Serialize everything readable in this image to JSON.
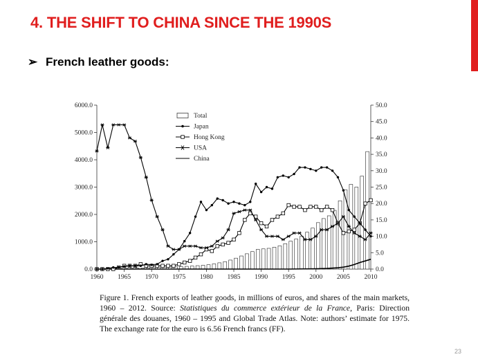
{
  "slide": {
    "title": "4. THE SHIFT TO CHINA SINCE THE 1990S",
    "bullet_symbol": "➢",
    "bullet_text": "French leather goods:",
    "page_number": "23",
    "accent_color": "#e01e1e"
  },
  "caption": {
    "prefix": "Figure 1.   French exports of leather goods, in millions of euros, and shares of the main markets, 1960 – 2012. Source: ",
    "source_italic": "Statistiques du commerce extérieur de la France",
    "suffix": ", Paris: Direction générale des douanes, 1960 – 1995 and Global Trade Atlas. Note: authors’ estimate for 1975. The exchange rate for the euro is 6.56 French francs (FF)."
  },
  "chart_data": {
    "type": "bar",
    "xlim": [
      1960,
      2010
    ],
    "x_ticks": [
      "1960",
      "1965",
      "1970",
      "1975",
      "1980",
      "1985",
      "1990",
      "1995",
      "2000",
      "2005",
      "2010"
    ],
    "y_left": {
      "range": [
        0,
        6000
      ],
      "ticks": [
        "0.0",
        "1000.0",
        "2000.0",
        "3000.0",
        "4000.0",
        "5000.0",
        "6000.0"
      ]
    },
    "y_right": {
      "range": [
        0,
        50
      ],
      "ticks": [
        "0.0",
        "5.0",
        "10.0",
        "15.0",
        "20.0",
        "25.0",
        "30.0",
        "35.0",
        "40.0",
        "45.0",
        "50.0"
      ]
    },
    "legend": [
      "Total",
      "Japan",
      "Hong Kong",
      "USA",
      "China"
    ],
    "legend_position": "top-center",
    "total": {
      "x": [
        1960,
        1961,
        1962,
        1963,
        1964,
        1965,
        1966,
        1967,
        1968,
        1969,
        1970,
        1971,
        1972,
        1973,
        1974,
        1975,
        1976,
        1977,
        1978,
        1979,
        1980,
        1981,
        1982,
        1983,
        1984,
        1985,
        1986,
        1987,
        1988,
        1989,
        1990,
        1991,
        1992,
        1993,
        1994,
        1995,
        1996,
        1997,
        1998,
        1999,
        2000,
        2001,
        2002,
        2003,
        2004,
        2005,
        2006,
        2007,
        2008,
        2009
      ],
      "values": [
        5,
        7,
        10,
        15,
        20,
        25,
        30,
        35,
        40,
        48,
        55,
        60,
        65,
        72,
        80,
        90,
        100,
        110,
        125,
        140,
        160,
        190,
        230,
        270,
        330,
        400,
        480,
        560,
        640,
        720,
        740,
        760,
        800,
        850,
        930,
        1020,
        1100,
        1200,
        1350,
        1500,
        1700,
        1850,
        1950,
        2150,
        2500,
        2900,
        3100,
        3000,
        3400,
        4300
      ]
    },
    "japan": {
      "x": [
        1960,
        1961,
        1962,
        1963,
        1964,
        1965,
        1966,
        1967,
        1968,
        1969,
        1970,
        1971,
        1972,
        1973,
        1974,
        1975,
        1976,
        1977,
        1978,
        1979,
        1980,
        1981,
        1982,
        1983,
        1984,
        1985,
        1986,
        1987,
        1988,
        1989,
        1990,
        1991,
        1992,
        1993,
        1994,
        1995,
        1996,
        1997,
        1998,
        1999,
        2000,
        2001,
        2002,
        2003,
        2004,
        2005,
        2006,
        2007,
        2008,
        2009,
        2010
      ],
      "values": [
        0,
        0,
        0.2,
        0.5,
        0.5,
        0.8,
        1,
        1,
        1,
        1.5,
        1.3,
        1.5,
        2.5,
        3,
        4.5,
        6,
        8.5,
        11,
        16,
        20.5,
        18,
        19.5,
        21.5,
        21,
        20,
        20.5,
        20,
        19.5,
        20.5,
        26,
        23.5,
        25,
        24.5,
        28,
        28.5,
        28,
        29,
        31,
        31,
        30.5,
        30,
        31,
        31,
        30,
        28,
        24,
        18,
        16,
        14,
        12,
        10
      ]
    },
    "hong_kong": {
      "x": [
        1960,
        1961,
        1962,
        1963,
        1964,
        1965,
        1966,
        1967,
        1968,
        1969,
        1970,
        1971,
        1972,
        1973,
        1974,
        1975,
        1976,
        1977,
        1978,
        1979,
        1980,
        1981,
        1982,
        1983,
        1984,
        1985,
        1986,
        1987,
        1988,
        1989,
        1990,
        1991,
        1992,
        1993,
        1994,
        1995,
        1996,
        1997,
        1998,
        1999,
        2000,
        2001,
        2002,
        2003,
        2004,
        2005,
        2006,
        2007,
        2008,
        2009,
        2010
      ],
      "values": [
        0,
        0,
        0,
        0,
        0.5,
        1,
        1,
        1,
        1.5,
        1,
        1,
        1,
        1,
        1,
        1,
        1.5,
        2,
        2.5,
        3.5,
        4.5,
        6,
        5.5,
        7,
        7.5,
        8,
        9,
        11,
        15,
        17,
        16,
        14,
        13,
        15,
        16,
        17,
        19.5,
        19,
        19,
        18,
        19,
        19,
        18,
        19,
        18,
        14,
        11,
        11.5,
        12,
        14,
        20,
        21
      ]
    },
    "usa": {
      "x": [
        1960,
        1961,
        1962,
        1963,
        1964,
        1965,
        1966,
        1967,
        1968,
        1969,
        1970,
        1971,
        1972,
        1973,
        1974,
        1975,
        1976,
        1977,
        1978,
        1979,
        1980,
        1981,
        1982,
        1983,
        1984,
        1985,
        1986,
        1987,
        1988,
        1989,
        1990,
        1991,
        1992,
        1993,
        1994,
        1995,
        1996,
        1997,
        1998,
        1999,
        2000,
        2001,
        2002,
        2003,
        2004,
        2005,
        2006,
        2007,
        2008,
        2009,
        2010
      ],
      "values": [
        36,
        44,
        37,
        44,
        44,
        44,
        40,
        39,
        34,
        28,
        21,
        16,
        12,
        7,
        6,
        6,
        7,
        7,
        7,
        6.5,
        6.5,
        7,
        8.5,
        9.5,
        12,
        17,
        17.5,
        18,
        18,
        15,
        12,
        10,
        10,
        10,
        9,
        10,
        11,
        11,
        9,
        9,
        10,
        12,
        12,
        13,
        14,
        16,
        13,
        11,
        10,
        9,
        11
      ]
    },
    "china": {
      "x": [
        1960,
        1970,
        1980,
        1990,
        1995,
        2000,
        2002,
        2004,
        2005,
        2006,
        2007,
        2008,
        2009,
        2010
      ],
      "values": [
        0,
        0,
        0,
        0,
        0,
        0.1,
        0.2,
        0.4,
        0.6,
        0.9,
        1.4,
        2,
        2.5,
        3
      ]
    }
  }
}
